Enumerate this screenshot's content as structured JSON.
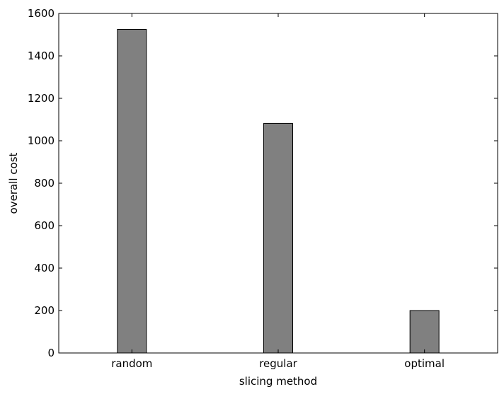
{
  "chart_data": {
    "type": "bar",
    "title": "",
    "xlabel": "slicing method",
    "ylabel": "overall cost",
    "categories": [
      "random",
      "regular",
      "optimal"
    ],
    "values": [
      1525,
      1082,
      200
    ],
    "ylim": [
      0,
      1600
    ],
    "yticks": [
      0,
      200,
      400,
      600,
      800,
      1000,
      1200,
      1400,
      1600
    ],
    "grid": false,
    "legend": "none",
    "bar_color": "#808080",
    "edge_color": "#000000"
  }
}
